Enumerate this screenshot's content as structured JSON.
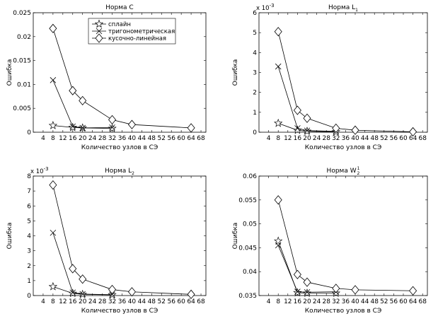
{
  "chart_data": [
    {
      "type": "line",
      "title": "Норма C",
      "xlabel": "Количество узлов в СЭ",
      "ylabel": "Ошибка",
      "xlim": [
        0,
        70
      ],
      "ylim": [
        0,
        0.025
      ],
      "xticks": [
        "4",
        "8",
        "12",
        "16",
        "20",
        "24",
        "28",
        "32",
        "36",
        "40",
        "44",
        "48",
        "52",
        "56",
        "60",
        "64",
        "68"
      ],
      "yticks": [
        "0",
        "0.005",
        "0.01",
        "0.015",
        "0.02",
        "0.025"
      ],
      "y_exponent": "",
      "legend": true,
      "legend_position": "top-center",
      "series": [
        {
          "name": "сплайн",
          "marker": "star",
          "x": [
            8,
            16,
            20,
            32
          ],
          "y": [
            0.0014,
            0.001,
            0.0009,
            0.0008
          ]
        },
        {
          "name": "тригонометрическая",
          "marker": "x",
          "x": [
            8,
            16,
            20,
            32
          ],
          "y": [
            0.0109,
            0.0012,
            0.0009,
            0.001
          ]
        },
        {
          "name": "кусочно-линейная",
          "marker": "diamond",
          "x": [
            8,
            16,
            20,
            32,
            40,
            64
          ],
          "y": [
            0.0217,
            0.0087,
            0.0066,
            0.0026,
            0.0016,
            0.0009
          ]
        }
      ]
    },
    {
      "type": "line",
      "title": "Норма L",
      "title_sub": "1",
      "xlabel": "Количество узлов в СЭ",
      "ylabel": "Ошибка",
      "xlim": [
        0,
        70
      ],
      "ylim": [
        0,
        6
      ],
      "xticks": [
        "4",
        "8",
        "12",
        "16",
        "20",
        "24",
        "28",
        "32",
        "36",
        "40",
        "44",
        "48",
        "52",
        "56",
        "60",
        "64",
        "68"
      ],
      "yticks": [
        "0",
        "1",
        "2",
        "3",
        "4",
        "5",
        "6"
      ],
      "y_exponent": "x 10",
      "y_exponent_power": "-3",
      "legend": false,
      "series": [
        {
          "marker": "star",
          "x": [
            8,
            16,
            20,
            32
          ],
          "y": [
            0.45,
            0.1,
            0.05,
            0.02
          ]
        },
        {
          "marker": "x",
          "x": [
            8,
            16,
            20,
            32
          ],
          "y": [
            3.3,
            0.2,
            0.08,
            0.05
          ]
        },
        {
          "marker": "diamond",
          "x": [
            8,
            16,
            20,
            32,
            40,
            64
          ],
          "y": [
            5.05,
            1.1,
            0.7,
            0.2,
            0.1,
            0.02
          ]
        }
      ]
    },
    {
      "type": "line",
      "title": "Норма L",
      "title_sub": "2",
      "xlabel": "Количество узлов в СЭ",
      "ylabel": "Ошибка",
      "xlim": [
        0,
        70
      ],
      "ylim": [
        0,
        8
      ],
      "xticks": [
        "4",
        "8",
        "12",
        "16",
        "20",
        "24",
        "28",
        "32",
        "36",
        "40",
        "44",
        "48",
        "52",
        "56",
        "60",
        "64",
        "68"
      ],
      "yticks": [
        "0",
        "1",
        "2",
        "3",
        "4",
        "5",
        "6",
        "7",
        "8"
      ],
      "y_exponent": "x 10",
      "y_exponent_power": "-3",
      "legend": false,
      "series": [
        {
          "marker": "star",
          "x": [
            8,
            16,
            20,
            32
          ],
          "y": [
            0.6,
            0.15,
            0.08,
            0.05
          ]
        },
        {
          "marker": "x",
          "x": [
            8,
            16,
            20,
            32
          ],
          "y": [
            4.2,
            0.2,
            0.1,
            0.06
          ]
        },
        {
          "marker": "diamond",
          "x": [
            8,
            16,
            20,
            32,
            40,
            64
          ],
          "y": [
            7.4,
            1.8,
            1.1,
            0.4,
            0.25,
            0.08
          ]
        }
      ]
    },
    {
      "type": "line",
      "title": "Норма W",
      "title_sub": "2",
      "title_sup": "1",
      "xlabel": "Количество узлов в СЭ",
      "ylabel": "Ошибка",
      "xlim": [
        0,
        70
      ],
      "ylim": [
        0.035,
        0.06
      ],
      "xticks": [
        "4",
        "8",
        "12",
        "16",
        "20",
        "24",
        "28",
        "32",
        "36",
        "40",
        "44",
        "48",
        "52",
        "56",
        "60",
        "64",
        "68"
      ],
      "yticks": [
        "0.035",
        "0.04",
        "0.045",
        "0.05",
        "0.055",
        "0.06"
      ],
      "y_exponent": "",
      "legend": false,
      "series": [
        {
          "marker": "star",
          "x": [
            8,
            16,
            20,
            32
          ],
          "y": [
            0.0464,
            0.0356,
            0.0355,
            0.0355
          ]
        },
        {
          "marker": "x",
          "x": [
            8,
            16,
            20,
            32
          ],
          "y": [
            0.0455,
            0.0358,
            0.0357,
            0.0358
          ]
        },
        {
          "marker": "diamond",
          "x": [
            8,
            16,
            20,
            32,
            40,
            64
          ],
          "y": [
            0.055,
            0.0394,
            0.0378,
            0.0365,
            0.0362,
            0.036
          ]
        }
      ]
    }
  ]
}
